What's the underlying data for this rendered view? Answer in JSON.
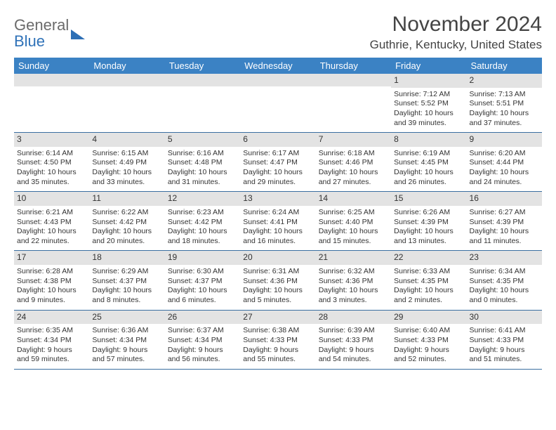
{
  "logo": {
    "line1": "General",
    "line2": "Blue"
  },
  "title": "November 2024",
  "location": "Guthrie, Kentucky, United States",
  "colors": {
    "header_bg": "#3b82c4",
    "header_text": "#ffffff",
    "daynum_bg": "#e3e3e3",
    "row_divider": "#3b6fa1",
    "logo_blue": "#2d6fb5",
    "text": "#333333"
  },
  "weekdays": [
    "Sunday",
    "Monday",
    "Tuesday",
    "Wednesday",
    "Thursday",
    "Friday",
    "Saturday"
  ],
  "weeks": [
    [
      null,
      null,
      null,
      null,
      null,
      {
        "n": "1",
        "sr": "Sunrise: 7:12 AM",
        "ss": "Sunset: 5:52 PM",
        "dl1": "Daylight: 10 hours",
        "dl2": "and 39 minutes."
      },
      {
        "n": "2",
        "sr": "Sunrise: 7:13 AM",
        "ss": "Sunset: 5:51 PM",
        "dl1": "Daylight: 10 hours",
        "dl2": "and 37 minutes."
      }
    ],
    [
      {
        "n": "3",
        "sr": "Sunrise: 6:14 AM",
        "ss": "Sunset: 4:50 PM",
        "dl1": "Daylight: 10 hours",
        "dl2": "and 35 minutes."
      },
      {
        "n": "4",
        "sr": "Sunrise: 6:15 AM",
        "ss": "Sunset: 4:49 PM",
        "dl1": "Daylight: 10 hours",
        "dl2": "and 33 minutes."
      },
      {
        "n": "5",
        "sr": "Sunrise: 6:16 AM",
        "ss": "Sunset: 4:48 PM",
        "dl1": "Daylight: 10 hours",
        "dl2": "and 31 minutes."
      },
      {
        "n": "6",
        "sr": "Sunrise: 6:17 AM",
        "ss": "Sunset: 4:47 PM",
        "dl1": "Daylight: 10 hours",
        "dl2": "and 29 minutes."
      },
      {
        "n": "7",
        "sr": "Sunrise: 6:18 AM",
        "ss": "Sunset: 4:46 PM",
        "dl1": "Daylight: 10 hours",
        "dl2": "and 27 minutes."
      },
      {
        "n": "8",
        "sr": "Sunrise: 6:19 AM",
        "ss": "Sunset: 4:45 PM",
        "dl1": "Daylight: 10 hours",
        "dl2": "and 26 minutes."
      },
      {
        "n": "9",
        "sr": "Sunrise: 6:20 AM",
        "ss": "Sunset: 4:44 PM",
        "dl1": "Daylight: 10 hours",
        "dl2": "and 24 minutes."
      }
    ],
    [
      {
        "n": "10",
        "sr": "Sunrise: 6:21 AM",
        "ss": "Sunset: 4:43 PM",
        "dl1": "Daylight: 10 hours",
        "dl2": "and 22 minutes."
      },
      {
        "n": "11",
        "sr": "Sunrise: 6:22 AM",
        "ss": "Sunset: 4:42 PM",
        "dl1": "Daylight: 10 hours",
        "dl2": "and 20 minutes."
      },
      {
        "n": "12",
        "sr": "Sunrise: 6:23 AM",
        "ss": "Sunset: 4:42 PM",
        "dl1": "Daylight: 10 hours",
        "dl2": "and 18 minutes."
      },
      {
        "n": "13",
        "sr": "Sunrise: 6:24 AM",
        "ss": "Sunset: 4:41 PM",
        "dl1": "Daylight: 10 hours",
        "dl2": "and 16 minutes."
      },
      {
        "n": "14",
        "sr": "Sunrise: 6:25 AM",
        "ss": "Sunset: 4:40 PM",
        "dl1": "Daylight: 10 hours",
        "dl2": "and 15 minutes."
      },
      {
        "n": "15",
        "sr": "Sunrise: 6:26 AM",
        "ss": "Sunset: 4:39 PM",
        "dl1": "Daylight: 10 hours",
        "dl2": "and 13 minutes."
      },
      {
        "n": "16",
        "sr": "Sunrise: 6:27 AM",
        "ss": "Sunset: 4:39 PM",
        "dl1": "Daylight: 10 hours",
        "dl2": "and 11 minutes."
      }
    ],
    [
      {
        "n": "17",
        "sr": "Sunrise: 6:28 AM",
        "ss": "Sunset: 4:38 PM",
        "dl1": "Daylight: 10 hours",
        "dl2": "and 9 minutes."
      },
      {
        "n": "18",
        "sr": "Sunrise: 6:29 AM",
        "ss": "Sunset: 4:37 PM",
        "dl1": "Daylight: 10 hours",
        "dl2": "and 8 minutes."
      },
      {
        "n": "19",
        "sr": "Sunrise: 6:30 AM",
        "ss": "Sunset: 4:37 PM",
        "dl1": "Daylight: 10 hours",
        "dl2": "and 6 minutes."
      },
      {
        "n": "20",
        "sr": "Sunrise: 6:31 AM",
        "ss": "Sunset: 4:36 PM",
        "dl1": "Daylight: 10 hours",
        "dl2": "and 5 minutes."
      },
      {
        "n": "21",
        "sr": "Sunrise: 6:32 AM",
        "ss": "Sunset: 4:36 PM",
        "dl1": "Daylight: 10 hours",
        "dl2": "and 3 minutes."
      },
      {
        "n": "22",
        "sr": "Sunrise: 6:33 AM",
        "ss": "Sunset: 4:35 PM",
        "dl1": "Daylight: 10 hours",
        "dl2": "and 2 minutes."
      },
      {
        "n": "23",
        "sr": "Sunrise: 6:34 AM",
        "ss": "Sunset: 4:35 PM",
        "dl1": "Daylight: 10 hours",
        "dl2": "and 0 minutes."
      }
    ],
    [
      {
        "n": "24",
        "sr": "Sunrise: 6:35 AM",
        "ss": "Sunset: 4:34 PM",
        "dl1": "Daylight: 9 hours",
        "dl2": "and 59 minutes."
      },
      {
        "n": "25",
        "sr": "Sunrise: 6:36 AM",
        "ss": "Sunset: 4:34 PM",
        "dl1": "Daylight: 9 hours",
        "dl2": "and 57 minutes."
      },
      {
        "n": "26",
        "sr": "Sunrise: 6:37 AM",
        "ss": "Sunset: 4:34 PM",
        "dl1": "Daylight: 9 hours",
        "dl2": "and 56 minutes."
      },
      {
        "n": "27",
        "sr": "Sunrise: 6:38 AM",
        "ss": "Sunset: 4:33 PM",
        "dl1": "Daylight: 9 hours",
        "dl2": "and 55 minutes."
      },
      {
        "n": "28",
        "sr": "Sunrise: 6:39 AM",
        "ss": "Sunset: 4:33 PM",
        "dl1": "Daylight: 9 hours",
        "dl2": "and 54 minutes."
      },
      {
        "n": "29",
        "sr": "Sunrise: 6:40 AM",
        "ss": "Sunset: 4:33 PM",
        "dl1": "Daylight: 9 hours",
        "dl2": "and 52 minutes."
      },
      {
        "n": "30",
        "sr": "Sunrise: 6:41 AM",
        "ss": "Sunset: 4:33 PM",
        "dl1": "Daylight: 9 hours",
        "dl2": "and 51 minutes."
      }
    ]
  ]
}
